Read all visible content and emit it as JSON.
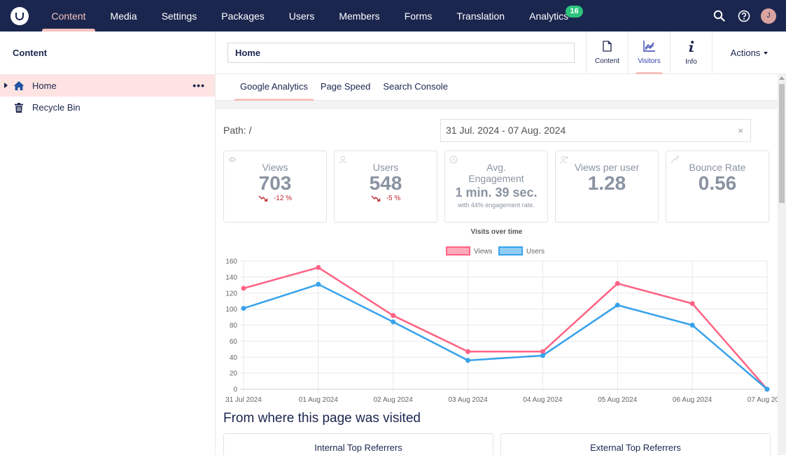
{
  "topnav": {
    "items": [
      {
        "label": "Content",
        "active": true
      },
      {
        "label": "Media"
      },
      {
        "label": "Settings"
      },
      {
        "label": "Packages"
      },
      {
        "label": "Users"
      },
      {
        "label": "Members"
      },
      {
        "label": "Forms"
      },
      {
        "label": "Translation"
      },
      {
        "label": "Analytics",
        "badge": "16"
      }
    ],
    "avatar_initial": "J"
  },
  "sidebar": {
    "title": "Content",
    "items": [
      {
        "label": "Home",
        "icon": "home-icon",
        "selected": true
      },
      {
        "label": "Recycle Bin",
        "icon": "trash-icon"
      }
    ],
    "more_label": "•••"
  },
  "header": {
    "name_value": "Home",
    "apps": [
      {
        "label": "Content",
        "icon": "document-icon"
      },
      {
        "label": "Visitors",
        "icon": "chart-icon",
        "active": true
      },
      {
        "label": "Info",
        "icon": "info-icon"
      }
    ],
    "actions_label": "Actions"
  },
  "analytics": {
    "tabs": [
      "Google Analytics",
      "Page Speed",
      "Search Console"
    ],
    "active_tab": 0,
    "path_label": "Path: /",
    "date_range": "31 Jul. 2024 - 07 Aug. 2024",
    "date_clear": "×",
    "stats": [
      {
        "title": "Views",
        "value": "703",
        "delta": "-12 %",
        "icon": "eye-icon"
      },
      {
        "title": "Users",
        "value": "548",
        "delta": "-5 %",
        "icon": "user-icon"
      },
      {
        "title": "Avg. Engagement",
        "value": "1 min. 39 sec.",
        "note": "with 44% engagement rate.",
        "icon": "clock-icon"
      },
      {
        "title": "Views per user",
        "value": "1.28",
        "icon": "user-plus-icon"
      },
      {
        "title": "Bounce Rate",
        "value": "0.56",
        "icon": "bounce-icon"
      }
    ],
    "section_title": "From where this page was visited",
    "referrers": [
      "Internal Top Referrers",
      "External Top Referrers"
    ]
  },
  "colors": {
    "views": "#ff6384",
    "users": "#36a2eb",
    "nav_bg": "#1b264f",
    "accent": "#f5c1bc"
  },
  "chart_data": {
    "type": "line",
    "title": "Visits over time",
    "categories": [
      "31 Jul 2024",
      "01 Aug 2024",
      "02 Aug 2024",
      "03 Aug 2024",
      "04 Aug 2024",
      "05 Aug 2024",
      "06 Aug 2024",
      "07 Aug 2024"
    ],
    "series": [
      {
        "name": "Views",
        "values": [
          126,
          152,
          92,
          47,
          47,
          132,
          107,
          0
        ]
      },
      {
        "name": "Users",
        "values": [
          101,
          131,
          84,
          36,
          42,
          105,
          80,
          0
        ]
      }
    ],
    "ylim": [
      0,
      160
    ],
    "yticks": [
      0,
      20,
      40,
      60,
      80,
      100,
      120,
      140,
      160
    ],
    "grid": true,
    "legend": "top-center"
  }
}
